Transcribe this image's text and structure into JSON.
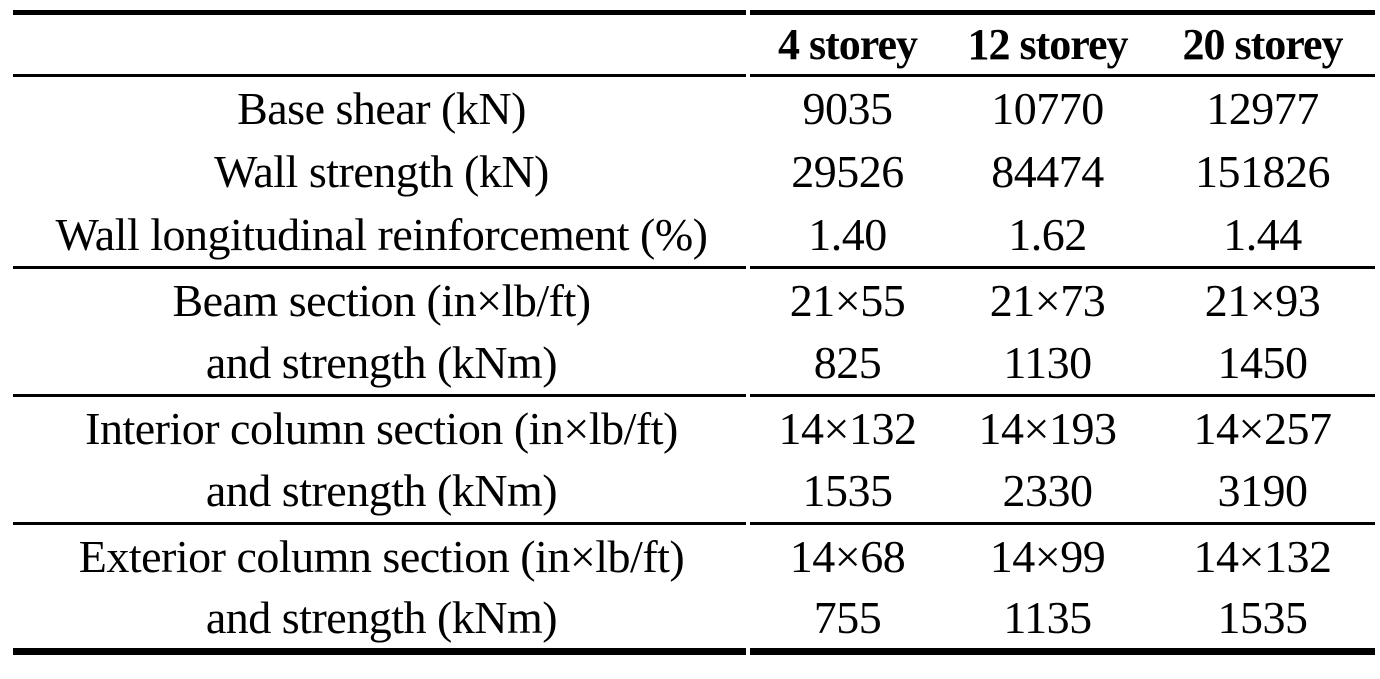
{
  "page": {
    "background_color": "#ffffff",
    "text_color": "#000000",
    "rule_color": "#000000"
  },
  "table": {
    "corner_label": "",
    "column_headers": [
      "4 storey",
      "12 storey",
      "20 storey"
    ],
    "sections": [
      {
        "rows": [
          {
            "label": "Base shear (kN)",
            "values": [
              "9035",
              "10770",
              "12977"
            ]
          },
          {
            "label": "Wall strength (kN)",
            "values": [
              "29526",
              "84474",
              "151826"
            ]
          },
          {
            "label": "Wall longitudinal reinforcement (%)",
            "values": [
              "1.40",
              "1.62",
              "1.44"
            ]
          }
        ]
      },
      {
        "rows": [
          {
            "label": "Beam section (in×lb/ft)",
            "values": [
              "21×55",
              "21×73",
              "21×93"
            ]
          },
          {
            "label": "and strength (kNm)",
            "values": [
              "825",
              "1130",
              "1450"
            ]
          }
        ]
      },
      {
        "rows": [
          {
            "label": "Interior column section (in×lb/ft)",
            "values": [
              "14×132",
              "14×193",
              "14×257"
            ]
          },
          {
            "label": "and strength (kNm)",
            "values": [
              "1535",
              "2330",
              "3190"
            ]
          }
        ]
      },
      {
        "rows": [
          {
            "label": "Exterior column section (in×lb/ft)",
            "values": [
              "14×68",
              "14×99",
              "14×132"
            ]
          },
          {
            "label": "and strength (kNm)",
            "values": [
              "755",
              "1135",
              "1535"
            ]
          }
        ]
      }
    ]
  }
}
